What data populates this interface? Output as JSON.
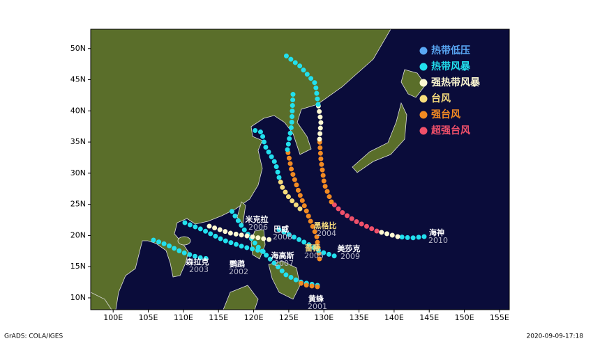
{
  "chart_data": {
    "type": "map",
    "xlim": [
      96.8,
      156.4
    ],
    "ylim": [
      8.1,
      53.1
    ],
    "xticks": [
      {
        "value": 100,
        "label": "100E"
      },
      {
        "value": 105,
        "label": "105E"
      },
      {
        "value": 110,
        "label": "110E"
      },
      {
        "value": 115,
        "label": "115E"
      },
      {
        "value": 120,
        "label": "120E"
      },
      {
        "value": 125,
        "label": "125E"
      },
      {
        "value": 130,
        "label": "130E"
      },
      {
        "value": 135,
        "label": "135E"
      },
      {
        "value": 140,
        "label": "140E"
      },
      {
        "value": 145,
        "label": "145E"
      },
      {
        "value": 150,
        "label": "150E"
      },
      {
        "value": 155,
        "label": "155E"
      }
    ],
    "yticks": [
      {
        "value": 10,
        "label": "10N"
      },
      {
        "value": 15,
        "label": "15N"
      },
      {
        "value": 20,
        "label": "20N"
      },
      {
        "value": 25,
        "label": "25N"
      },
      {
        "value": 30,
        "label": "30N"
      },
      {
        "value": 35,
        "label": "35N"
      },
      {
        "value": 40,
        "label": "40N"
      },
      {
        "value": 45,
        "label": "45N"
      },
      {
        "value": 50,
        "label": "50N"
      }
    ],
    "series": [
      {
        "name": "热带低压",
        "color": "#5aa8f5"
      },
      {
        "name": "热带风暴",
        "color": "#22e0ee"
      },
      {
        "name": "强热带风暴",
        "color": "#fdf9d2"
      },
      {
        "name": "台风",
        "color": "#f7dc7c"
      },
      {
        "name": "强台风",
        "color": "#f28a22"
      },
      {
        "name": "超强台风",
        "color": "#f0506a"
      }
    ],
    "storms": [
      {
        "name": "森拉克",
        "code": "2003"
      },
      {
        "name": "鹦鹉",
        "code": "2002"
      },
      {
        "name": "海高斯",
        "code": "2007"
      },
      {
        "name": "米克拉",
        "code": "2006"
      },
      {
        "name": "巴威",
        "code": "2008"
      },
      {
        "name": "黑格比",
        "code": "2004"
      },
      {
        "name": "蔷薇",
        "code": "2005"
      },
      {
        "name": "美莎克",
        "code": "2009"
      },
      {
        "name": "海神",
        "code": "2010"
      },
      {
        "name": "黄蜂",
        "code": "2001"
      }
    ]
  },
  "footer": {
    "left": "GrADS: COLA/IGES",
    "right": "2020-09-09-17:18"
  }
}
